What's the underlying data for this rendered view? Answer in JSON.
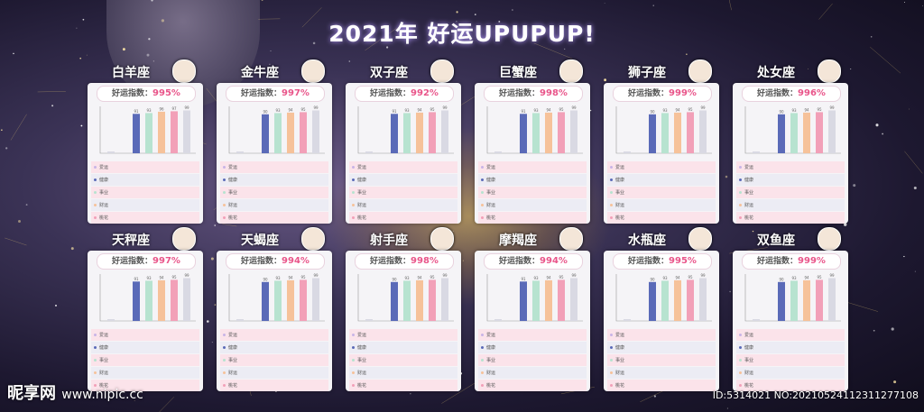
{
  "title": "2021年 好运UPUPUP!",
  "score_label": "好运指数：",
  "row_labels": [
    "爱运",
    "健康",
    "事业",
    "财运",
    "桃花"
  ],
  "colors": {
    "odd_row": "#fbe3ea",
    "even_row": "#ececf4",
    "bars": [
      "#d9d9e3",
      "#c8b4e6",
      "#5a6ab8",
      "#b7e3d0",
      "#f6c29a",
      "#f2a0b8"
    ]
  },
  "zodiacs": [
    {
      "name": "白羊座",
      "icon": "ram-icon",
      "score": "995%",
      "values": [
        91,
        93,
        96,
        97,
        99
      ],
      "lows": [
        1,
        0
      ]
    },
    {
      "name": "金牛座",
      "icon": "bull-icon",
      "score": "997%",
      "values": [
        90,
        93,
        94,
        95,
        99
      ],
      "lows": [
        1,
        0
      ]
    },
    {
      "name": "双子座",
      "icon": "twins-icon",
      "score": "992%",
      "values": [
        91,
        93,
        94,
        95,
        99
      ],
      "lows": [
        1,
        0
      ]
    },
    {
      "name": "巨蟹座",
      "icon": "crab-icon",
      "score": "998%",
      "values": [
        91,
        93,
        94,
        95,
        99
      ],
      "lows": [
        1,
        0
      ]
    },
    {
      "name": "狮子座",
      "icon": "lion-icon",
      "score": "999%",
      "values": [
        90,
        93,
        94,
        95,
        99
      ],
      "lows": [
        1,
        0
      ]
    },
    {
      "name": "处女座",
      "icon": "virgo-icon",
      "score": "996%",
      "values": [
        90,
        93,
        94,
        95,
        99
      ],
      "lows": [
        1,
        0
      ]
    },
    {
      "name": "天秤座",
      "icon": "scales-icon",
      "score": "997%",
      "values": [
        91,
        93,
        94,
        95,
        99
      ],
      "lows": [
        1,
        0
      ]
    },
    {
      "name": "天蝎座",
      "icon": "scorpion-icon",
      "score": "994%",
      "values": [
        90,
        93,
        94,
        95,
        99
      ],
      "lows": [
        1,
        0
      ]
    },
    {
      "name": "射手座",
      "icon": "archer-icon",
      "score": "998%",
      "values": [
        90,
        93,
        94,
        95,
        99
      ],
      "lows": [
        1,
        0
      ]
    },
    {
      "name": "摩羯座",
      "icon": "goat-icon",
      "score": "994%",
      "values": [
        91,
        93,
        94,
        95,
        99
      ],
      "lows": [
        1,
        0
      ]
    },
    {
      "name": "水瓶座",
      "icon": "aquarius-icon",
      "score": "995%",
      "values": [
        90,
        93,
        94,
        95,
        99
      ],
      "lows": [
        1,
        0
      ]
    },
    {
      "name": "双鱼座",
      "icon": "fish-icon",
      "score": "999%",
      "values": [
        90,
        93,
        94,
        95,
        99
      ],
      "lows": [
        1,
        0
      ]
    }
  ],
  "watermark": {
    "brand": "昵享网",
    "url": "www.nipic.cc"
  },
  "id_text": "ID:5314021 NO:20210524112311277108"
}
